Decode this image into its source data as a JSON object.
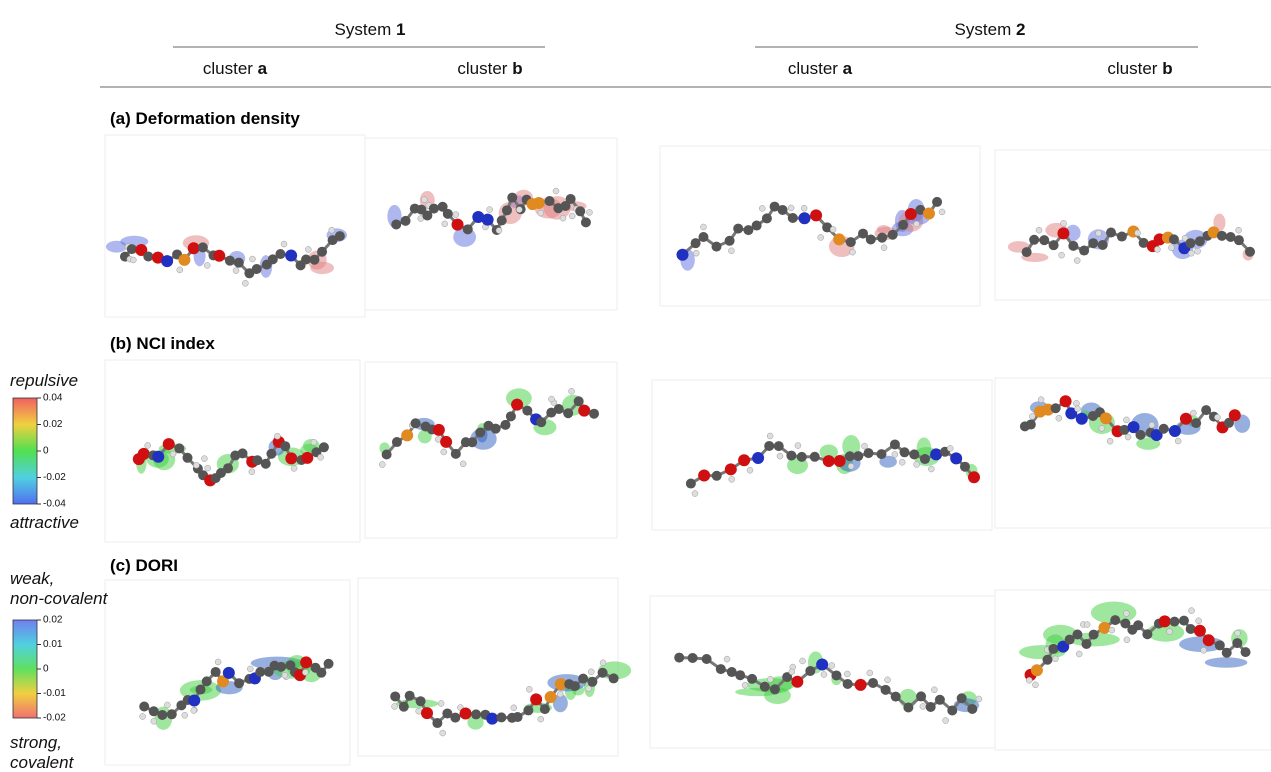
{
  "header": {
    "systems": [
      {
        "label": "System",
        "number": "1",
        "clusters": [
          {
            "label": "cluster",
            "letter": "a"
          },
          {
            "label": "cluster",
            "letter": "b"
          }
        ]
      },
      {
        "label": "System",
        "number": "2",
        "clusters": [
          {
            "label": "cluster",
            "letter": "a"
          },
          {
            "label": "cluster",
            "letter": "b"
          }
        ]
      }
    ]
  },
  "rows": [
    {
      "label": "(a) Deformation density"
    },
    {
      "label": "(b) NCI index"
    },
    {
      "label": "(c) DORI"
    }
  ],
  "colorbars": [
    {
      "top_label": [
        "repulsive"
      ],
      "bottom_label": [
        "attractive"
      ],
      "ticks": [
        0.04,
        0.02,
        0,
        -0.02,
        -0.04
      ]
    },
    {
      "top_label": [
        "weak,",
        "non-covalent"
      ],
      "bottom_label": [
        "strong,",
        "covalent"
      ],
      "ticks": [
        0.02,
        0.01,
        0,
        -0.01,
        -0.02
      ]
    }
  ]
}
